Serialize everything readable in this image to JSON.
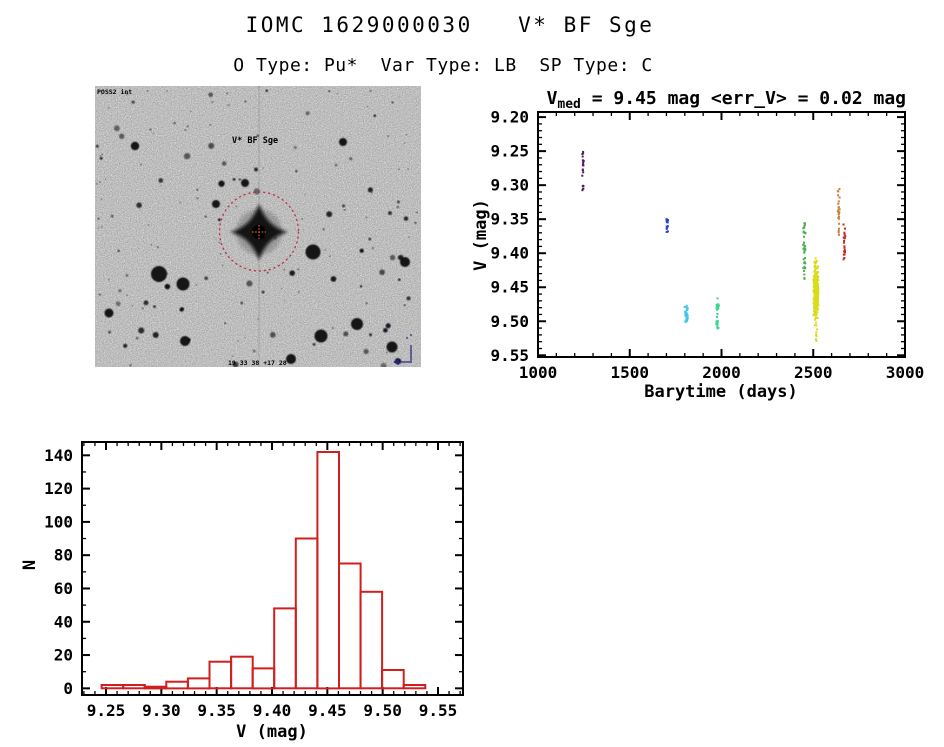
{
  "header": {
    "title": "IOMC 1629000030   V* BF Sge",
    "subtitle": "O Type: Pu*  Var Type: LB  SP Type: C"
  },
  "finder": {
    "survey_label": "POSS2 int",
    "target_label": "V* BF Sge",
    "coords_label": "19 33 38 +17 28",
    "marker_color": "#c2203a",
    "center_cross_color": "#d8622f",
    "annotation_color": "#23237a"
  },
  "chart_data": [
    {
      "type": "scatter",
      "title_prefix": "V",
      "title_sub": "med",
      "title_rest": " = 9.45 mag <err_V> = 0.02 mag",
      "xlabel": "Barytime (days)",
      "ylabel": "V (mag)",
      "xlim": [
        1000,
        3000
      ],
      "ylim_top": 9.1925,
      "ylim_bottom": 9.5525,
      "y_axis_inverted_magnitudes": true,
      "grid": false,
      "xminor_step": 100,
      "yminor_step": 0.01,
      "xticks": [
        {
          "v": 1000,
          "label": "1000"
        },
        {
          "v": 1500,
          "label": "1500"
        },
        {
          "v": 2000,
          "label": "2000"
        },
        {
          "v": 2500,
          "label": "2500"
        },
        {
          "v": 3000,
          "label": "3000"
        }
      ],
      "yticks": [
        {
          "v": 9.2,
          "label": "9.20"
        },
        {
          "v": 9.25,
          "label": "9.25"
        },
        {
          "v": 9.3,
          "label": "9.30"
        },
        {
          "v": 9.35,
          "label": "9.35"
        },
        {
          "v": 9.4,
          "label": "9.40"
        },
        {
          "v": 9.45,
          "label": "9.45"
        },
        {
          "v": 9.5,
          "label": "9.50"
        },
        {
          "v": 9.55,
          "label": "9.55"
        }
      ],
      "clusters": [
        {
          "name": "epoch-1a",
          "x": 1245,
          "color": "#541a63",
          "v_min": 9.248,
          "v_max": 9.287,
          "n": 15,
          "spread": 1.1,
          "seed": 11
        },
        {
          "name": "epoch-1b",
          "x": 1246,
          "color": "#541a63",
          "v_min": 9.298,
          "v_max": 9.308,
          "n": 5,
          "spread": 0.9,
          "seed": 12
        },
        {
          "name": "epoch-2",
          "x": 1705,
          "color": "#2740cf",
          "v_min": 9.35,
          "v_max": 9.373,
          "n": 16,
          "spread": 1.2,
          "seed": 22
        },
        {
          "name": "epoch-3",
          "x": 1808,
          "color": "#41c6e8",
          "v_min": 9.477,
          "v_max": 9.501,
          "n": 34,
          "spread": 1.8,
          "seed": 33
        },
        {
          "name": "epoch-4",
          "x": 1978,
          "color": "#3fd492",
          "v_min": 9.466,
          "v_max": 9.511,
          "n": 26,
          "spread": 1.5,
          "seed": 44
        },
        {
          "name": "epoch-5",
          "x": 2452,
          "color": "#4fae4f",
          "v_min": 9.353,
          "v_max": 9.445,
          "n": 36,
          "spread": 1.5,
          "seed": 55
        },
        {
          "name": "epoch-6",
          "x": 2515,
          "color": "#d6de1c",
          "v_min": 9.397,
          "v_max": 9.514,
          "n": 330,
          "spread": 2.7,
          "dist": "gauss",
          "seed": 66
        },
        {
          "name": "epoch-6-tail",
          "x": 2517,
          "color": "#d6de1c",
          "v_min": 9.514,
          "v_max": 9.529,
          "n": 6,
          "spread": 1.0,
          "seed": 67
        },
        {
          "name": "epoch-7",
          "x": 2640,
          "color": "#c8803a",
          "v_min": 9.305,
          "v_max": 9.378,
          "n": 26,
          "spread": 1.4,
          "seed": 77
        },
        {
          "name": "epoch-8",
          "x": 2670,
          "color": "#c32a24",
          "v_min": 9.357,
          "v_max": 9.41,
          "n": 22,
          "spread": 1.4,
          "seed": 88
        }
      ]
    },
    {
      "type": "histogram",
      "xlabel": "V (mag)",
      "ylabel": "N",
      "color": "#d01f1f",
      "bin_start": 9.246,
      "bin_width": 0.0195,
      "values": [
        2,
        2,
        1,
        4,
        6,
        16,
        19,
        12,
        48,
        90,
        142,
        75,
        58,
        11,
        2
      ],
      "xlim": [
        9.2283,
        9.5726
      ],
      "ylim_top": 148,
      "ylim_bottom": -4,
      "grid": false,
      "xminor_step": 0.01,
      "yminor_step": 10,
      "xticks": [
        {
          "v": 9.25,
          "label": "9.25"
        },
        {
          "v": 9.3,
          "label": "9.30"
        },
        {
          "v": 9.35,
          "label": "9.35"
        },
        {
          "v": 9.4,
          "label": "9.40"
        },
        {
          "v": 9.45,
          "label": "9.45"
        },
        {
          "v": 9.5,
          "label": "9.50"
        },
        {
          "v": 9.55,
          "label": "9.55"
        }
      ],
      "yticks": [
        {
          "v": 0,
          "label": "0"
        },
        {
          "v": 20,
          "label": "20"
        },
        {
          "v": 40,
          "label": "40"
        },
        {
          "v": 60,
          "label": "60"
        },
        {
          "v": 80,
          "label": "80"
        },
        {
          "v": 100,
          "label": "100"
        },
        {
          "v": 120,
          "label": "120"
        },
        {
          "v": 140,
          "label": "140"
        }
      ]
    }
  ]
}
